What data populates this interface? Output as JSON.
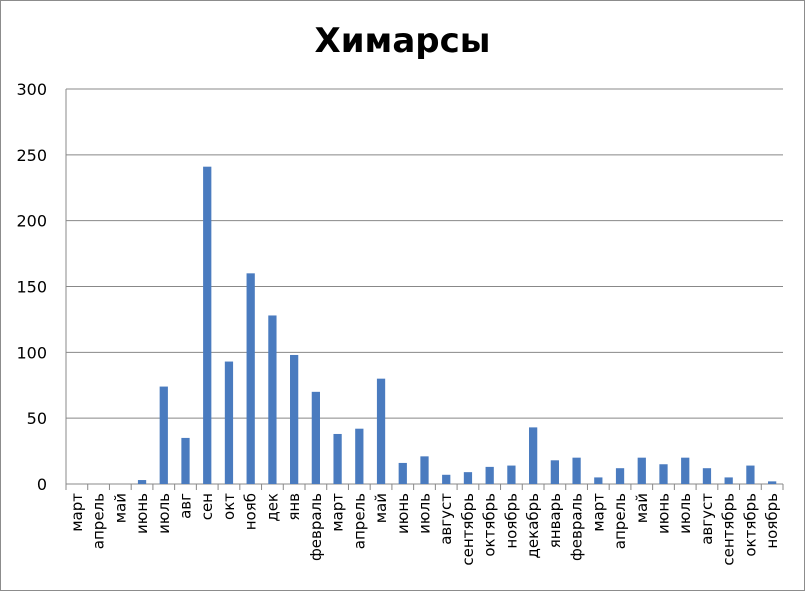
{
  "chart_data": {
    "type": "bar",
    "title": "Химарсы",
    "xlabel": "",
    "ylabel": "",
    "ylim": [
      0,
      300
    ],
    "yticks": [
      0,
      50,
      100,
      150,
      200,
      250,
      300
    ],
    "grid": true,
    "legend": "none",
    "bar_color": "#4a7bbf",
    "categories": [
      "март",
      "апрель",
      "май",
      "июнь",
      "июль",
      "авг",
      "сен",
      "окт",
      "нояб",
      "дек",
      "янв",
      "февраль",
      "март",
      "апрель",
      "май",
      "июнь",
      "июль",
      "август",
      "сентябрь",
      "октябрь",
      "ноябрь",
      "декабрь",
      "январь",
      "февраль",
      "март",
      "апрель",
      "май",
      "июнь",
      "июль",
      "август",
      "сентябрь",
      "октябрь",
      "ноябрь"
    ],
    "values": [
      0,
      0,
      0,
      3,
      74,
      35,
      241,
      93,
      160,
      128,
      98,
      70,
      38,
      42,
      80,
      16,
      21,
      7,
      9,
      13,
      14,
      43,
      18,
      20,
      5,
      12,
      20,
      15,
      20,
      12,
      5,
      14,
      2
    ]
  }
}
